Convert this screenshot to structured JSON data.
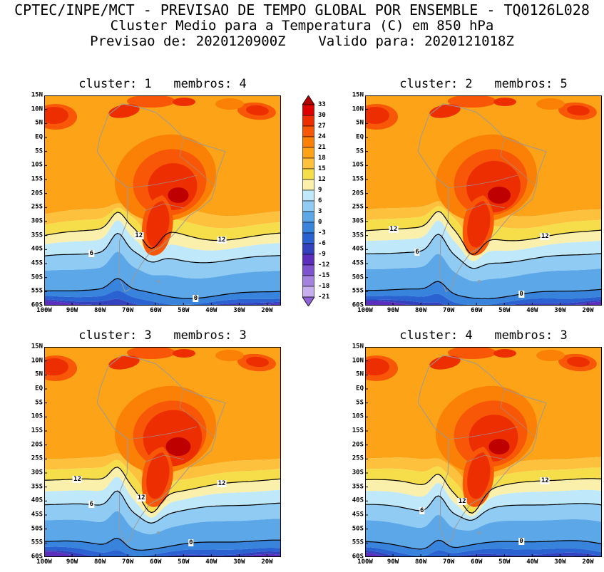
{
  "header": {
    "title": "CPTEC/INPE/MCT - PREVISAO DE TEMPO GLOBAL POR ENSEMBLE - TQ0126L028",
    "subtitle": "Cluster Medio para a Temperatura (C) em 850 hPa",
    "forecast_line": "Previsao de: 2020120900Z    Valido para: 2020121018Z",
    "forecast_init_label": "Previsao de:",
    "forecast_init": "2020120900Z",
    "forecast_valid_label": "Valido para:",
    "forecast_valid": "2020121018Z"
  },
  "panels": [
    {
      "title": "cluster: 1   membros: 4",
      "cluster": "1",
      "membros": "4",
      "contour_labels": [
        {
          "text": "12",
          "fx": 0.4,
          "line": 2
        },
        {
          "text": "12",
          "fx": 0.75,
          "line": 2
        },
        {
          "text": "6",
          "fx": 0.2,
          "line": 4
        },
        {
          "text": "0",
          "fx": 0.64,
          "line": 6
        }
      ]
    },
    {
      "title": "cluster: 2   membros: 5",
      "cluster": "2",
      "membros": "5",
      "contour_labels": [
        {
          "text": "12",
          "fx": 0.12,
          "line": 2
        },
        {
          "text": "12",
          "fx": 0.76,
          "line": 2
        },
        {
          "text": "6",
          "fx": 0.22,
          "line": 4
        },
        {
          "text": "0",
          "fx": 0.66,
          "line": 6
        }
      ]
    },
    {
      "title": "cluster: 3   membros: 3",
      "cluster": "3",
      "membros": "3",
      "contour_labels": [
        {
          "text": "12",
          "fx": 0.14,
          "line": 2
        },
        {
          "text": "12",
          "fx": 0.41,
          "line": 2
        },
        {
          "text": "12",
          "fx": 0.75,
          "line": 2
        },
        {
          "text": "6",
          "fx": 0.2,
          "line": 4
        },
        {
          "text": "0",
          "fx": 0.62,
          "line": 6
        }
      ]
    },
    {
      "title": "cluster: 4   membros: 3",
      "cluster": "4",
      "membros": "3",
      "contour_labels": [
        {
          "text": "12",
          "fx": 0.41,
          "line": 2
        },
        {
          "text": "12",
          "fx": 0.76,
          "line": 2
        },
        {
          "text": "6",
          "fx": 0.24,
          "line": 4
        },
        {
          "text": "0",
          "fx": 0.66,
          "line": 6
        }
      ]
    }
  ],
  "axes": {
    "lat": [
      "15N",
      "10N",
      "5N",
      "EQ",
      "5S",
      "10S",
      "15S",
      "20S",
      "25S",
      "30S",
      "35S",
      "40S",
      "45S",
      "50S",
      "55S",
      "60S"
    ],
    "lon": [
      "100W",
      "90W",
      "80W",
      "70W",
      "60W",
      "50W",
      "40W",
      "30W",
      "20W"
    ]
  },
  "colorbar": {
    "labels": [
      "33",
      "30",
      "27",
      "24",
      "21",
      "18",
      "15",
      "12",
      "9",
      "6",
      "3",
      "0",
      "-3",
      "-6",
      "-9",
      "-12",
      "-15",
      "-18",
      "-21"
    ],
    "segments": [
      "#DE0000",
      "#ED2E00",
      "#F75706",
      "#FB8106",
      "#FCA317",
      "#FDC13D",
      "#F6DE4B",
      "#FAF0AC",
      "#BFE8FA",
      "#8FCBF2",
      "#5CA7E8",
      "#3884DC",
      "#2A62D2",
      "#3342BE",
      "#5B2EBE",
      "#7E54CE",
      "#A383DE",
      "#C7AEEE"
    ],
    "arrow_top": "#B20000",
    "arrow_bottom": "#8F62D6"
  },
  "map": {
    "band_colors": [
      "#FCA317",
      "#FDC13D",
      "#F6DE4B",
      "#FAF0AC",
      "#BFE8FA",
      "#8FCBF2",
      "#5CA7E8",
      "#3884DC",
      "#2A62D2",
      "#3342BE",
      "#5B2EBE"
    ],
    "blob_colors": {
      "warm2": "#FB8106",
      "warm1": "#F75706",
      "red": "#ED2E00",
      "core": "#BE0000"
    },
    "coast_color": "#9A9A9A",
    "contour_color": "#000000"
  },
  "chart_data": {
    "type": "heatmap",
    "title": "CPTEC/INPE/MCT - PREVISAO DE TEMPO GLOBAL POR ENSEMBLE - TQ0126L028",
    "subtitle": "Cluster Medio para a Temperatura (C) em 850 hPa",
    "source": "CPTEC/INPE/MCT",
    "model": "TQ0126L028",
    "variable": "Temperatura",
    "units": "C",
    "level": "850 hPa",
    "init_time": "2020120900Z",
    "valid_time": "2020121018Z",
    "x_ticks": [
      "100W",
      "90W",
      "80W",
      "70W",
      "60W",
      "50W",
      "40W",
      "30W",
      "20W"
    ],
    "y_ticks": [
      "15N",
      "10N",
      "5N",
      "EQ",
      "5S",
      "10S",
      "15S",
      "20S",
      "25S",
      "30S",
      "35S",
      "40S",
      "45S",
      "50S",
      "55S",
      "60S"
    ],
    "color_scale_levels": [
      33,
      30,
      27,
      24,
      21,
      18,
      15,
      12,
      9,
      6,
      3,
      0,
      -3,
      -6,
      -9,
      -12,
      -15,
      -18,
      -21
    ],
    "labeled_contours": [
      12,
      6,
      0
    ],
    "panels": [
      {
        "cluster": 1,
        "membros": 4
      },
      {
        "cluster": 2,
        "membros": 5
      },
      {
        "cluster": 3,
        "membros": 3
      },
      {
        "cluster": 4,
        "membros": 3
      }
    ],
    "legend_position": "center, right of first-row left panel",
    "grid": false
  }
}
